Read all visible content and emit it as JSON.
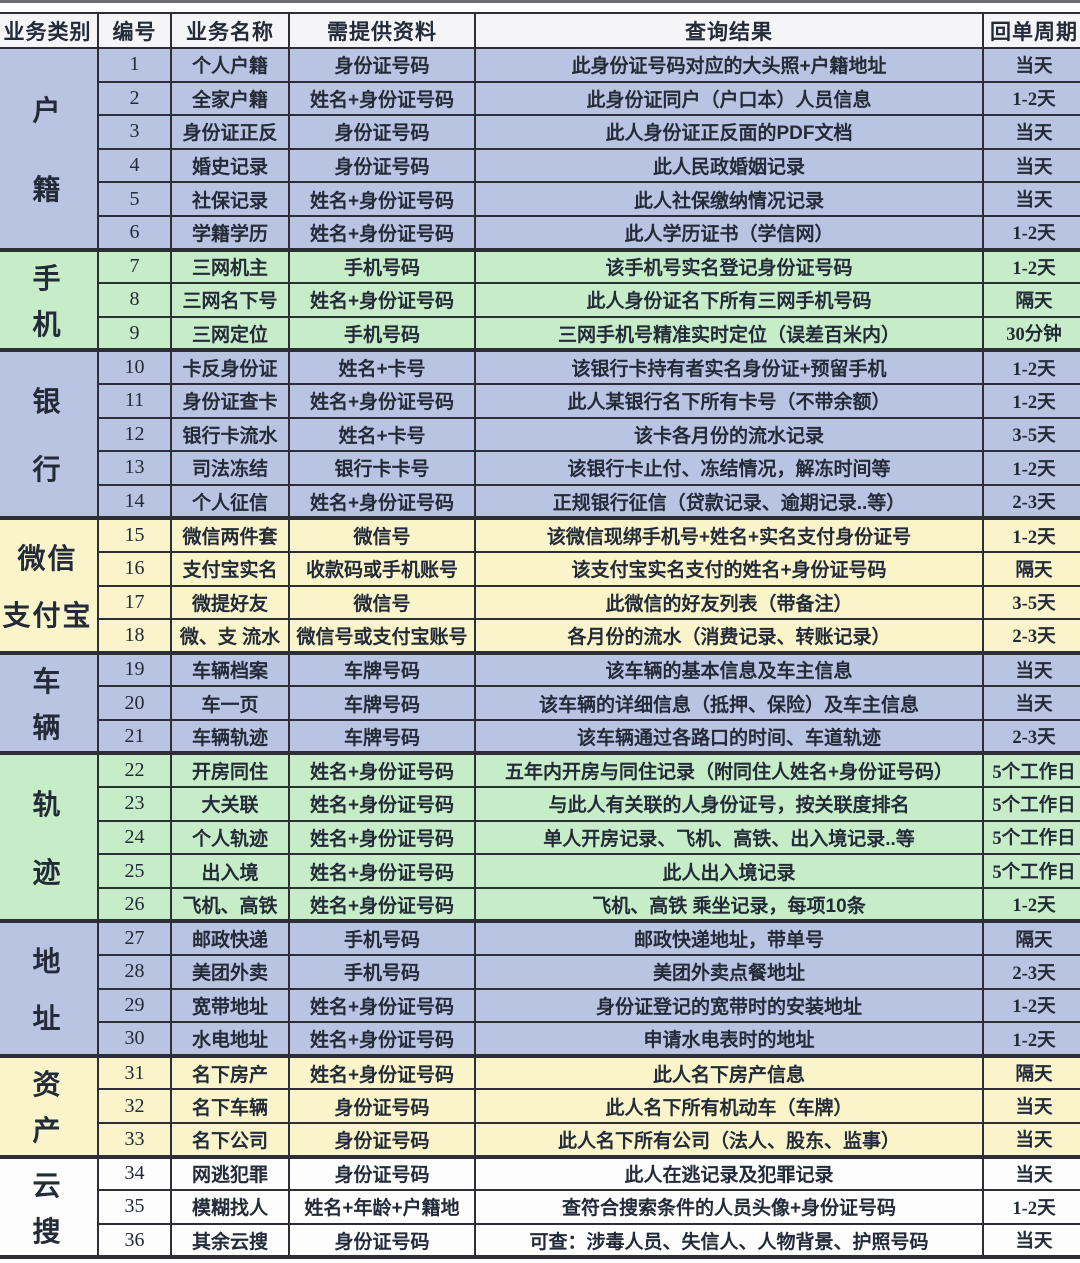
{
  "colors": {
    "blue": "#b9c4e2",
    "green": "#c7edc8",
    "yellow": "#f9f4c9",
    "white": "#fdfdfd",
    "header_bg": "#f5f5f7",
    "border": "#2e2e36",
    "text": "#232a38"
  },
  "table": {
    "columns": [
      "业务类别",
      "编号",
      "业务名称",
      "需提供资料",
      "查询结果",
      "回单周期"
    ],
    "groups": [
      {
        "category": "户籍",
        "category_lines": [
          "户",
          "籍"
        ],
        "color": "blue",
        "rows": [
          {
            "no": "1",
            "name": "个人户籍",
            "materials": "身份证号码",
            "result": "此身份证号码对应的大头照+户籍地址",
            "cycle": "当天"
          },
          {
            "no": "2",
            "name": "全家户籍",
            "materials": "姓名+身份证号码",
            "result": "此身份证同户（户口本）人员信息",
            "cycle": "1-2天"
          },
          {
            "no": "3",
            "name": "身份证正反",
            "materials": "身份证号码",
            "result": "此人身份证正反面的PDF文档",
            "cycle": "当天"
          },
          {
            "no": "4",
            "name": "婚史记录",
            "materials": "身份证号码",
            "result": "此人民政婚姻记录",
            "cycle": "当天"
          },
          {
            "no": "5",
            "name": "社保记录",
            "materials": "姓名+身份证号码",
            "result": "此人社保缴纳情况记录",
            "cycle": "当天"
          },
          {
            "no": "6",
            "name": "学籍学历",
            "materials": "姓名+身份证号码",
            "result": "此人学历证书（学信网）",
            "cycle": "1-2天"
          }
        ]
      },
      {
        "category": "手机",
        "category_lines": [
          "手",
          "机"
        ],
        "color": "green",
        "rows": [
          {
            "no": "7",
            "name": "三网机主",
            "materials": "手机号码",
            "result": "该手机号实名登记身份证号码",
            "cycle": "1-2天"
          },
          {
            "no": "8",
            "name": "三网名下号",
            "materials": "姓名+身份证号码",
            "result": "此人身份证名下所有三网手机号码",
            "cycle": "隔天"
          },
          {
            "no": "9",
            "name": "三网定位",
            "materials": "手机号码",
            "result": "三网手机号精准实时定位（误差百米内）",
            "cycle": "30分钟"
          }
        ]
      },
      {
        "category": "银行",
        "category_lines": [
          "银",
          "行"
        ],
        "color": "blue",
        "rows": [
          {
            "no": "10",
            "name": "卡反身份证",
            "materials": "姓名+卡号",
            "result": "该银行卡持有者实名身份证+预留手机",
            "cycle": "1-2天"
          },
          {
            "no": "11",
            "name": "身份证查卡",
            "materials": "姓名+身份证号码",
            "result": "此人某银行名下所有卡号（不带余额）",
            "cycle": "1-2天"
          },
          {
            "no": "12",
            "name": "银行卡流水",
            "materials": "姓名+卡号",
            "result": "该卡各月份的流水记录",
            "cycle": "3-5天"
          },
          {
            "no": "13",
            "name": "司法冻结",
            "materials": "银行卡卡号",
            "result": "该银行卡止付、冻结情况，解冻时间等",
            "cycle": "1-2天"
          },
          {
            "no": "14",
            "name": "个人征信",
            "materials": "姓名+身份证号码",
            "result": "正规银行征信（贷款记录、逾期记录..等）",
            "cycle": "2-3天"
          }
        ]
      },
      {
        "category": "微信支付宝",
        "category_lines": [
          "微信",
          "支付宝"
        ],
        "color": "yellow",
        "rows": [
          {
            "no": "15",
            "name": "微信两件套",
            "materials": "微信号",
            "result": "该微信现绑手机号+姓名+实名支付身份证号",
            "cycle": "1-2天"
          },
          {
            "no": "16",
            "name": "支付宝实名",
            "materials": "收款码或手机账号",
            "result": "该支付宝实名支付的姓名+身份证号码",
            "cycle": "隔天"
          },
          {
            "no": "17",
            "name": "微提好友",
            "materials": "微信号",
            "result": "此微信的好友列表（带备注）",
            "cycle": "3-5天"
          },
          {
            "no": "18",
            "name": "微、支 流水",
            "materials": "微信号或支付宝账号",
            "result": "各月份的流水（消费记录、转账记录）",
            "cycle": "2-3天"
          }
        ]
      },
      {
        "category": "车辆",
        "category_lines": [
          "车",
          "辆"
        ],
        "color": "blue",
        "rows": [
          {
            "no": "19",
            "name": "车辆档案",
            "materials": "车牌号码",
            "result": "该车辆的基本信息及车主信息",
            "cycle": "当天"
          },
          {
            "no": "20",
            "name": "车一页",
            "materials": "车牌号码",
            "result": "该车辆的详细信息（抵押、保险）及车主信息",
            "cycle": "当天"
          },
          {
            "no": "21",
            "name": "车辆轨迹",
            "materials": "车牌号码",
            "result": "该车辆通过各路口的时间、车道轨迹",
            "cycle": "2-3天"
          }
        ]
      },
      {
        "category": "轨迹",
        "category_lines": [
          "轨",
          "迹"
        ],
        "color": "green",
        "rows": [
          {
            "no": "22",
            "name": "开房同住",
            "materials": "姓名+身份证号码",
            "result": "五年内开房与同住记录（附同住人姓名+身份证号码）",
            "cycle": "5个工作日"
          },
          {
            "no": "23",
            "name": "大关联",
            "materials": "姓名+身份证号码",
            "result": "与此人有关联的人身份证号，按关联度排名",
            "cycle": "5个工作日"
          },
          {
            "no": "24",
            "name": "个人轨迹",
            "materials": "姓名+身份证号码",
            "result": "单人开房记录、飞机、高铁、出入境记录..等",
            "cycle": "5个工作日"
          },
          {
            "no": "25",
            "name": "出入境",
            "materials": "姓名+身份证号码",
            "result": "此人出入境记录",
            "cycle": "5个工作日"
          },
          {
            "no": "26",
            "name": "飞机、高铁",
            "materials": "姓名+身份证号码",
            "result": "飞机、高铁 乘坐记录，每项10条",
            "cycle": "1-2天"
          }
        ]
      },
      {
        "category": "地址",
        "category_lines": [
          "地",
          "址"
        ],
        "color": "blue",
        "rows": [
          {
            "no": "27",
            "name": "邮政快递",
            "materials": "手机号码",
            "result": "邮政快递地址，带单号",
            "cycle": "隔天"
          },
          {
            "no": "28",
            "name": "美团外卖",
            "materials": "手机号码",
            "result": "美团外卖点餐地址",
            "cycle": "2-3天"
          },
          {
            "no": "29",
            "name": "宽带地址",
            "materials": "姓名+身份证号码",
            "result": "身份证登记的宽带时的安装地址",
            "cycle": "1-2天"
          },
          {
            "no": "30",
            "name": "水电地址",
            "materials": "姓名+身份证号码",
            "result": "申请水电表时的地址",
            "cycle": "1-2天"
          }
        ]
      },
      {
        "category": "资产",
        "category_lines": [
          "资",
          "产"
        ],
        "color": "yellow",
        "rows": [
          {
            "no": "31",
            "name": "名下房产",
            "materials": "姓名+身份证号码",
            "result": "此人名下房产信息",
            "cycle": "隔天"
          },
          {
            "no": "32",
            "name": "名下车辆",
            "materials": "身份证号码",
            "result": "此人名下所有机动车（车牌）",
            "cycle": "当天"
          },
          {
            "no": "33",
            "name": "名下公司",
            "materials": "身份证号码",
            "result": "此人名下所有公司（法人、股东、监事）",
            "cycle": "当天"
          }
        ]
      },
      {
        "category": "云搜",
        "category_lines": [
          "云",
          "搜"
        ],
        "color": "white",
        "rows": [
          {
            "no": "34",
            "name": "网逃犯罪",
            "materials": "身份证号码",
            "result": "此人在逃记录及犯罪记录",
            "cycle": "当天"
          },
          {
            "no": "35",
            "name": "模糊找人",
            "materials": "姓名+年龄+户籍地",
            "result": "查符合搜索条件的人员头像+身份证号码",
            "cycle": "1-2天"
          },
          {
            "no": "36",
            "name": "其余云搜",
            "materials": "身份证号码",
            "result": "可查：涉毒人员、失信人、人物背景、护照号码",
            "cycle": "当天"
          }
        ]
      }
    ]
  }
}
